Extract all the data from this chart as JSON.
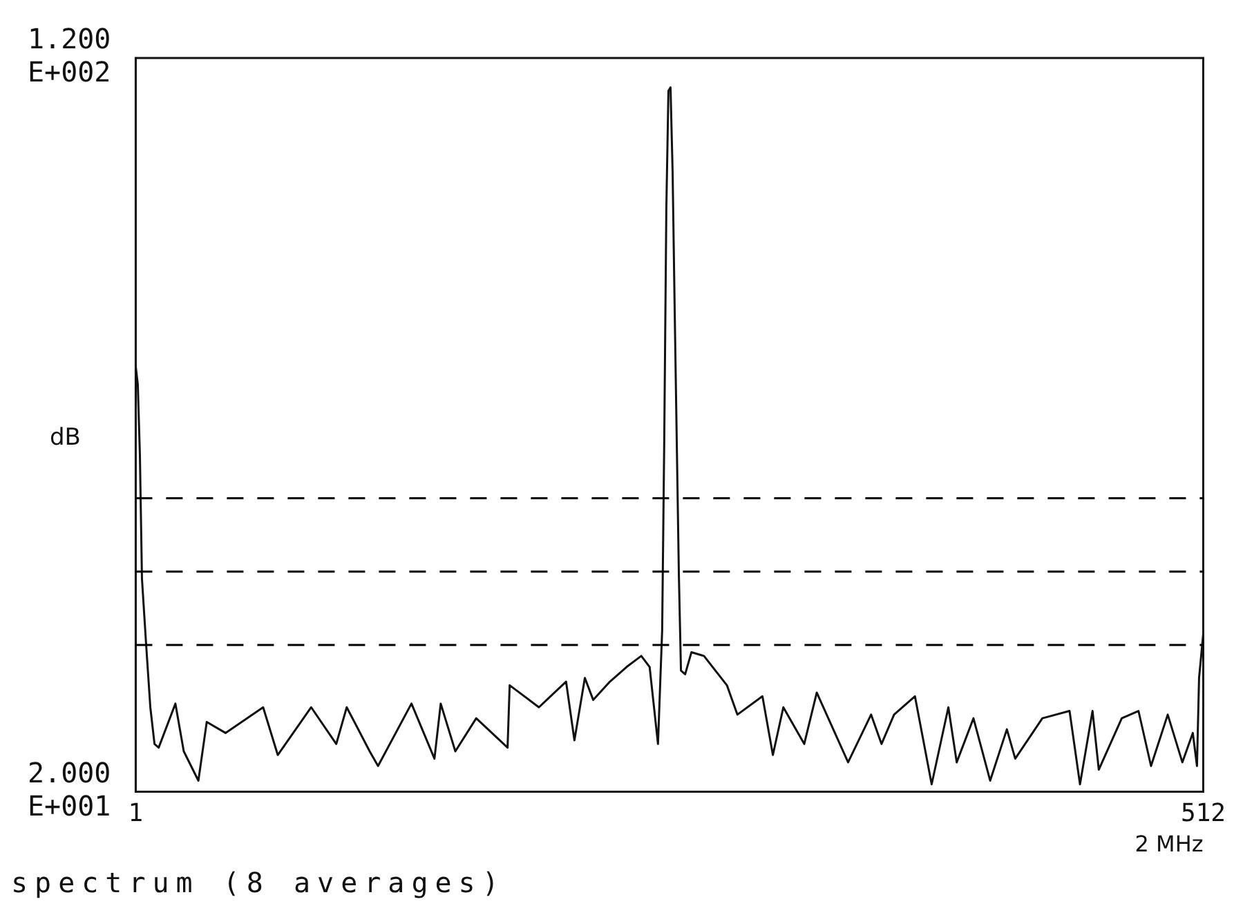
{
  "chart_data": {
    "type": "line",
    "ylabel": "dB",
    "xlabel": "2 MHz",
    "annotations": [
      "spectrum (8 averages)"
    ],
    "xlim": [
      1,
      512
    ],
    "xticks": [
      1,
      512
    ],
    "ylim": [
      20,
      120
    ],
    "yticks": [
      {
        "value": 20,
        "label": "2.000E+001"
      },
      {
        "value": 120,
        "label": "1.200E+002"
      }
    ],
    "legend": false,
    "marker": "none",
    "line_style": "solid",
    "ref_lines": [
      {
        "axis": "y",
        "value": 60,
        "color": "#000000",
        "line_style": "dashed"
      },
      {
        "axis": "y",
        "value": 50,
        "color": "#000000",
        "line_style": "dashed"
      },
      {
        "axis": "y",
        "value": 40,
        "color": "#000000",
        "line_style": "dashed"
      }
    ],
    "series": [
      {
        "color": "#111111",
        "x": [
          1,
          2,
          3,
          4,
          6,
          8,
          10,
          12,
          20,
          24,
          31,
          35,
          44,
          62,
          69,
          85,
          97,
          102,
          113,
          117,
          133,
          144,
          147,
          154,
          164,
          179,
          180,
          194,
          207,
          211,
          216,
          220,
          228,
          236,
          243,
          247,
          251,
          253,
          254,
          255,
          256,
          257,
          258,
          259,
          261,
          262,
          264,
          267,
          273,
          284,
          289,
          301,
          306,
          311,
          321,
          327,
          342,
          353,
          358,
          364,
          374,
          382,
          390,
          394,
          402,
          410,
          418,
          422,
          435,
          448,
          453,
          459,
          462,
          473,
          481,
          487,
          495,
          502,
          507,
          509,
          510,
          512
        ],
        "values": [
          78,
          75.5,
          66,
          49,
          40,
          31.5,
          26.5,
          26,
          32,
          25.5,
          21.5,
          29.5,
          28,
          31.5,
          25,
          31.5,
          26.5,
          31.5,
          25.5,
          23.5,
          32,
          24.5,
          32,
          25.5,
          30,
          26,
          34.5,
          31.5,
          35,
          27,
          35.5,
          32.5,
          35,
          37,
          38.5,
          37,
          26.5,
          42,
          68,
          99.5,
          115.5,
          116,
          104.5,
          85.5,
          49.5,
          36.5,
          36,
          39,
          38.5,
          34.5,
          30.5,
          33,
          25,
          31.5,
          26.5,
          33.5,
          24,
          30.5,
          26.5,
          30.5,
          33,
          21,
          31.5,
          24,
          30,
          21.5,
          28.5,
          24.5,
          30,
          31,
          21,
          31,
          23,
          30,
          31,
          23.5,
          30.5,
          24,
          28,
          23.5,
          35.5,
          41.5
        ]
      }
    ]
  }
}
